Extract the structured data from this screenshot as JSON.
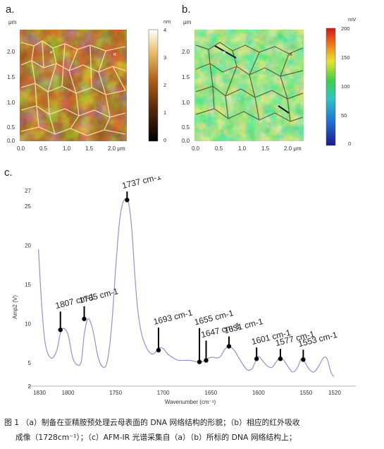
{
  "panels": {
    "a": {
      "label": "a.",
      "unit_top": "μm",
      "y_ticks": [
        "2.0",
        "1.5",
        "1.0",
        "0.5",
        "0.0"
      ],
      "x_ticks": [
        "0.0",
        "0.5",
        "1.0",
        "1.5",
        "2.0 μm"
      ],
      "colorbar_unit": "nm",
      "colorbar_ticks": [
        "4",
        "3",
        "2",
        "1",
        "0"
      ],
      "colorbar_range": [
        0,
        4
      ]
    },
    "b": {
      "label": "b.",
      "unit_top": "μm",
      "y_ticks": [
        "2.0",
        "1.5",
        "1.0",
        "0.5",
        "0.0"
      ],
      "x_ticks": [
        "0.0",
        "0.5",
        "1.0",
        "1.5",
        "2.0 μm"
      ],
      "colorbar_unit": "mV",
      "colorbar_ticks": [
        "200",
        "150",
        "100",
        "50",
        "0"
      ],
      "colorbar_range": [
        0,
        200
      ]
    },
    "c": {
      "label": "c."
    }
  },
  "chart_data": {
    "type": "line",
    "xlabel": "Wavenumber (cm⁻¹)",
    "ylabel": "Amp2 (V)",
    "x_reversed": true,
    "xlim": [
      1830,
      1520
    ],
    "ylim": [
      2,
      27
    ],
    "x_ticks": [
      "1830",
      "1800",
      "1750",
      "1700",
      "1650",
      "1600",
      "1550",
      "1520"
    ],
    "y_ticks": [
      "27",
      "25",
      "20",
      "15",
      "10",
      "5",
      "2"
    ],
    "series": [
      {
        "color": "#8e93d6",
        "x": [
          1831,
          1828,
          1824,
          1818,
          1812,
          1808,
          1805,
          1800,
          1795,
          1790,
          1786,
          1783,
          1779,
          1774,
          1768,
          1762,
          1758,
          1754,
          1750,
          1746,
          1742,
          1738,
          1736,
          1733,
          1730,
          1727,
          1723,
          1719,
          1715,
          1711,
          1707,
          1704,
          1700,
          1696,
          1692,
          1688,
          1684,
          1680,
          1676,
          1672,
          1668,
          1664,
          1660,
          1656,
          1652,
          1648,
          1644,
          1640,
          1636,
          1632,
          1629,
          1625,
          1621,
          1617,
          1612,
          1607,
          1603,
          1600,
          1596,
          1591,
          1586,
          1582,
          1578,
          1574,
          1569,
          1564,
          1559,
          1555,
          1551,
          1547,
          1542,
          1537,
          1532,
          1528,
          1524,
          1521
        ],
        "y": [
          19.5,
          13,
          7.5,
          5.6,
          6.5,
          8.8,
          9.4,
          8.6,
          5.6,
          4.7,
          5.2,
          8.6,
          10.6,
          9.2,
          5.5,
          4.4,
          5.7,
          10,
          17,
          23,
          25.6,
          25.8,
          25.2,
          22,
          16.5,
          12,
          8.8,
          7.3,
          6.4,
          6.1,
          6.5,
          6.9,
          6.8,
          6.2,
          5.8,
          5.5,
          5.3,
          5.3,
          5.3,
          5.3,
          5.2,
          5.1,
          5.1,
          5.3,
          5.6,
          5.7,
          5.6,
          5.8,
          6.6,
          7.1,
          7,
          6.5,
          5.7,
          4.9,
          4.1,
          4.2,
          5.2,
          5.8,
          5.3,
          4.6,
          4.4,
          5,
          5.6,
          5.4,
          4.5,
          3.8,
          4.4,
          5.5,
          5,
          4.2,
          3.8,
          4.5,
          5.6,
          5.5,
          3.8,
          3.2
        ]
      }
    ],
    "annotations": [
      {
        "label": "1807 cm-1",
        "x": 1808,
        "y": 9.2
      },
      {
        "label": "1785 cm-1",
        "x": 1783,
        "y": 10.6
      },
      {
        "label": "1737 cm-1",
        "x": 1738,
        "y": 25.8
      },
      {
        "label": "1693 cm-1",
        "x": 1705,
        "y": 6.6
      },
      {
        "label": "1655 cm-1",
        "x": 1662,
        "y": 5.1
      },
      {
        "label": "1647 cm-1",
        "x": 1655,
        "y": 5.3
      },
      {
        "label": "1631 cm-1",
        "x": 1631,
        "y": 7.1
      },
      {
        "label": "1601 cm-1",
        "x": 1602,
        "y": 5.5
      },
      {
        "label": "1577 cm-1",
        "x": 1577,
        "y": 5.5
      },
      {
        "label": "1553 cm-1",
        "x": 1553,
        "y": 5.4
      }
    ]
  },
  "caption": {
    "line1": "图 1 （a）制备在亚精胺预处理云母表面的 DNA 网络结构的形貌；（b）相应的红外吸收",
    "line2": "成像（1728cm⁻¹）；（c）AFM-IR 光谱采集自（a）（b）所标的 DNA 网络结构上；"
  },
  "colors": {
    "spectrum": "#8e93d6",
    "afm_dark": "#3a1a06",
    "afm_mid": "#8a4410",
    "afm_light": "#fff6c8",
    "ir_green": "#33c25a",
    "ir_yellow": "#d8e63a"
  }
}
